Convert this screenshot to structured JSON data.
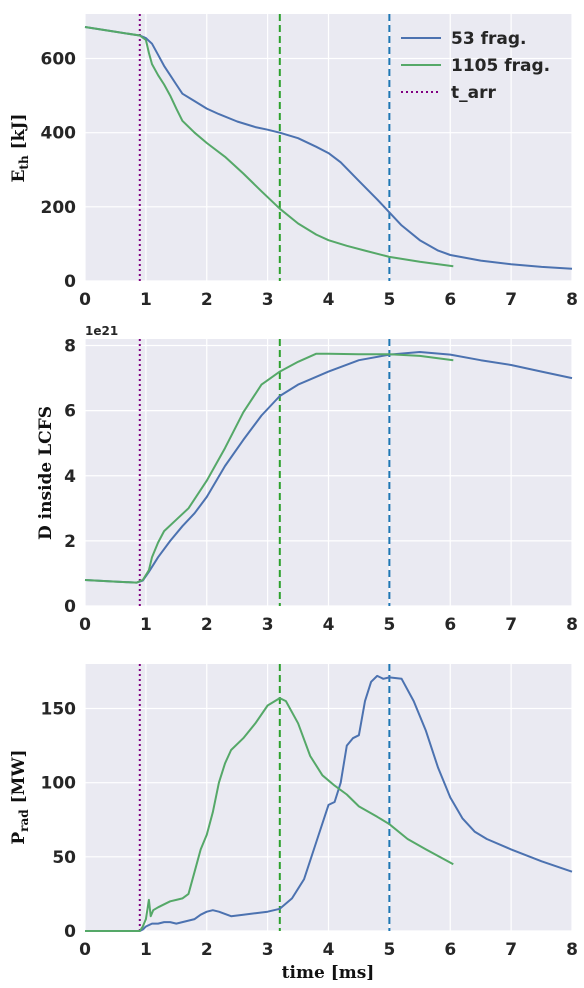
{
  "colors": {
    "background": "#eaeaf2",
    "grid": "#ffffff",
    "series_53": "#4c72b0",
    "series_1105": "#55a868",
    "t_arr": "#800080",
    "vline_green": "#2ca02c",
    "vline_blue": "#1f77b4"
  },
  "chart_data": [
    {
      "type": "line",
      "ylabel_main": "E",
      "ylabel_sub": "th",
      "ylabel_unit": " [kJ]",
      "xlabel": "",
      "xlim": [
        0,
        8
      ],
      "ylim": [
        0,
        720
      ],
      "xticks": [
        0,
        1,
        2,
        3,
        4,
        5,
        6,
        7,
        8
      ],
      "yticks": [
        0,
        200,
        400,
        600
      ],
      "grid": true,
      "legend": {
        "position": "top-right",
        "entries": [
          "53 frag.",
          "1105 frag.",
          "t_arr"
        ]
      },
      "vlines": [
        {
          "x": 0.9,
          "style": "dotted",
          "color": "t_arr"
        },
        {
          "x": 3.2,
          "style": "dashed",
          "color": "vline_green"
        },
        {
          "x": 5.0,
          "style": "dashed",
          "color": "vline_blue"
        }
      ],
      "series": [
        {
          "name": "53 frag.",
          "color": "series_53",
          "x": [
            0,
            0.5,
            0.9,
            1.0,
            1.1,
            1.2,
            1.3,
            1.4,
            1.5,
            1.6,
            1.8,
            2.0,
            2.2,
            2.5,
            2.8,
            3.0,
            3.2,
            3.5,
            3.8,
            4.0,
            4.2,
            4.5,
            4.8,
            5.0,
            5.2,
            5.5,
            5.8,
            6.0,
            6.5,
            7.0,
            7.5,
            8.0
          ],
          "y": [
            685,
            672,
            662,
            655,
            640,
            610,
            580,
            555,
            530,
            505,
            485,
            465,
            450,
            430,
            415,
            408,
            400,
            385,
            362,
            345,
            320,
            270,
            220,
            185,
            150,
            110,
            82,
            70,
            55,
            45,
            38,
            33
          ]
        },
        {
          "name": "1105 frag.",
          "color": "series_1105",
          "x": [
            0,
            0.5,
            0.9,
            1.0,
            1.05,
            1.1,
            1.2,
            1.3,
            1.4,
            1.5,
            1.6,
            1.8,
            2.0,
            2.3,
            2.6,
            2.9,
            3.2,
            3.5,
            3.8,
            4.0,
            4.3,
            4.6,
            5.0,
            5.5,
            6.05
          ],
          "y": [
            685,
            672,
            662,
            650,
            615,
            585,
            555,
            530,
            500,
            465,
            432,
            400,
            372,
            335,
            290,
            242,
            195,
            155,
            125,
            110,
            95,
            82,
            65,
            52,
            40
          ]
        }
      ]
    },
    {
      "type": "line",
      "ylabel_main": "D inside LCFS",
      "ylabel_sub": "",
      "ylabel_unit": "",
      "xlabel": "",
      "offset_text": "1e21",
      "xlim": [
        0,
        8
      ],
      "ylim": [
        0,
        8.2
      ],
      "xticks": [
        0,
        1,
        2,
        3,
        4,
        5,
        6,
        7,
        8
      ],
      "yticks": [
        0,
        2,
        4,
        6,
        8
      ],
      "grid": true,
      "vlines": [
        {
          "x": 0.9,
          "style": "dotted",
          "color": "t_arr"
        },
        {
          "x": 3.2,
          "style": "dashed",
          "color": "vline_green"
        },
        {
          "x": 5.0,
          "style": "dashed",
          "color": "vline_blue"
        }
      ],
      "series": [
        {
          "name": "53 frag.",
          "color": "series_53",
          "x": [
            0,
            0.5,
            0.85,
            0.95,
            1.05,
            1.2,
            1.4,
            1.6,
            1.8,
            2.0,
            2.3,
            2.6,
            2.9,
            3.2,
            3.5,
            4.0,
            4.5,
            5.0,
            5.5,
            6.0,
            6.5,
            7.0,
            7.5,
            8.0
          ],
          "y": [
            0.8,
            0.75,
            0.72,
            0.78,
            1.05,
            1.5,
            2.0,
            2.45,
            2.85,
            3.35,
            4.3,
            5.1,
            5.85,
            6.45,
            6.8,
            7.2,
            7.55,
            7.72,
            7.8,
            7.72,
            7.55,
            7.4,
            7.2,
            7.0
          ]
        },
        {
          "name": "1105 frag.",
          "color": "series_1105",
          "x": [
            0,
            0.5,
            0.85,
            0.95,
            1.05,
            1.1,
            1.2,
            1.3,
            1.5,
            1.7,
            2.0,
            2.3,
            2.6,
            2.9,
            3.2,
            3.5,
            3.8,
            4.0,
            4.5,
            5.0,
            5.5,
            6.05
          ],
          "y": [
            0.8,
            0.75,
            0.72,
            0.8,
            1.1,
            1.5,
            1.95,
            2.3,
            2.65,
            3.0,
            3.85,
            4.85,
            5.95,
            6.8,
            7.2,
            7.5,
            7.75,
            7.75,
            7.73,
            7.73,
            7.68,
            7.55
          ]
        }
      ]
    },
    {
      "type": "line",
      "ylabel_main": "P",
      "ylabel_sub": "rad",
      "ylabel_unit": " [MW]",
      "xlabel": "time [ms]",
      "xlim": [
        0,
        8
      ],
      "ylim": [
        0,
        180
      ],
      "xticks": [
        0,
        1,
        2,
        3,
        4,
        5,
        6,
        7,
        8
      ],
      "yticks": [
        0,
        50,
        100,
        150
      ],
      "grid": true,
      "vlines": [
        {
          "x": 0.9,
          "style": "dotted",
          "color": "t_arr"
        },
        {
          "x": 3.2,
          "style": "dashed",
          "color": "vline_green"
        },
        {
          "x": 5.0,
          "style": "dashed",
          "color": "vline_blue"
        }
      ],
      "series": [
        {
          "name": "53 frag.",
          "color": "series_53",
          "x": [
            0,
            0.9,
            0.95,
            1.0,
            1.1,
            1.2,
            1.3,
            1.4,
            1.5,
            1.6,
            1.7,
            1.8,
            1.9,
            2.0,
            2.1,
            2.2,
            2.4,
            2.6,
            2.8,
            3.0,
            3.2,
            3.4,
            3.6,
            3.8,
            4.0,
            4.1,
            4.2,
            4.3,
            4.4,
            4.5,
            4.6,
            4.7,
            4.8,
            4.9,
            5.0,
            5.2,
            5.4,
            5.6,
            5.8,
            6.0,
            6.2,
            6.4,
            6.6,
            7.0,
            7.5,
            8.0
          ],
          "y": [
            0,
            0,
            1,
            3,
            5,
            5,
            6,
            6,
            5,
            6,
            7,
            8,
            11,
            13,
            14,
            13,
            10,
            11,
            12,
            13,
            15,
            22,
            35,
            60,
            85,
            87,
            100,
            125,
            130,
            132,
            155,
            168,
            172,
            170,
            171,
            170,
            155,
            135,
            110,
            90,
            76,
            67,
            62,
            55,
            47,
            40
          ]
        },
        {
          "name": "1105 frag.",
          "color": "series_1105",
          "x": [
            0,
            0.9,
            0.95,
            1.0,
            1.05,
            1.08,
            1.12,
            1.2,
            1.3,
            1.4,
            1.5,
            1.6,
            1.7,
            1.8,
            1.9,
            2.0,
            2.1,
            2.2,
            2.3,
            2.4,
            2.6,
            2.8,
            3.0,
            3.2,
            3.3,
            3.5,
            3.7,
            3.9,
            4.1,
            4.3,
            4.5,
            4.8,
            5.0,
            5.3,
            5.6,
            6.05
          ],
          "y": [
            0,
            0,
            3,
            8,
            21,
            10,
            14,
            16,
            18,
            20,
            21,
            22,
            25,
            40,
            55,
            65,
            80,
            100,
            113,
            122,
            130,
            140,
            152,
            157,
            155,
            140,
            118,
            105,
            98,
            92,
            84,
            77,
            72,
            62,
            55,
            45
          ]
        }
      ]
    }
  ]
}
